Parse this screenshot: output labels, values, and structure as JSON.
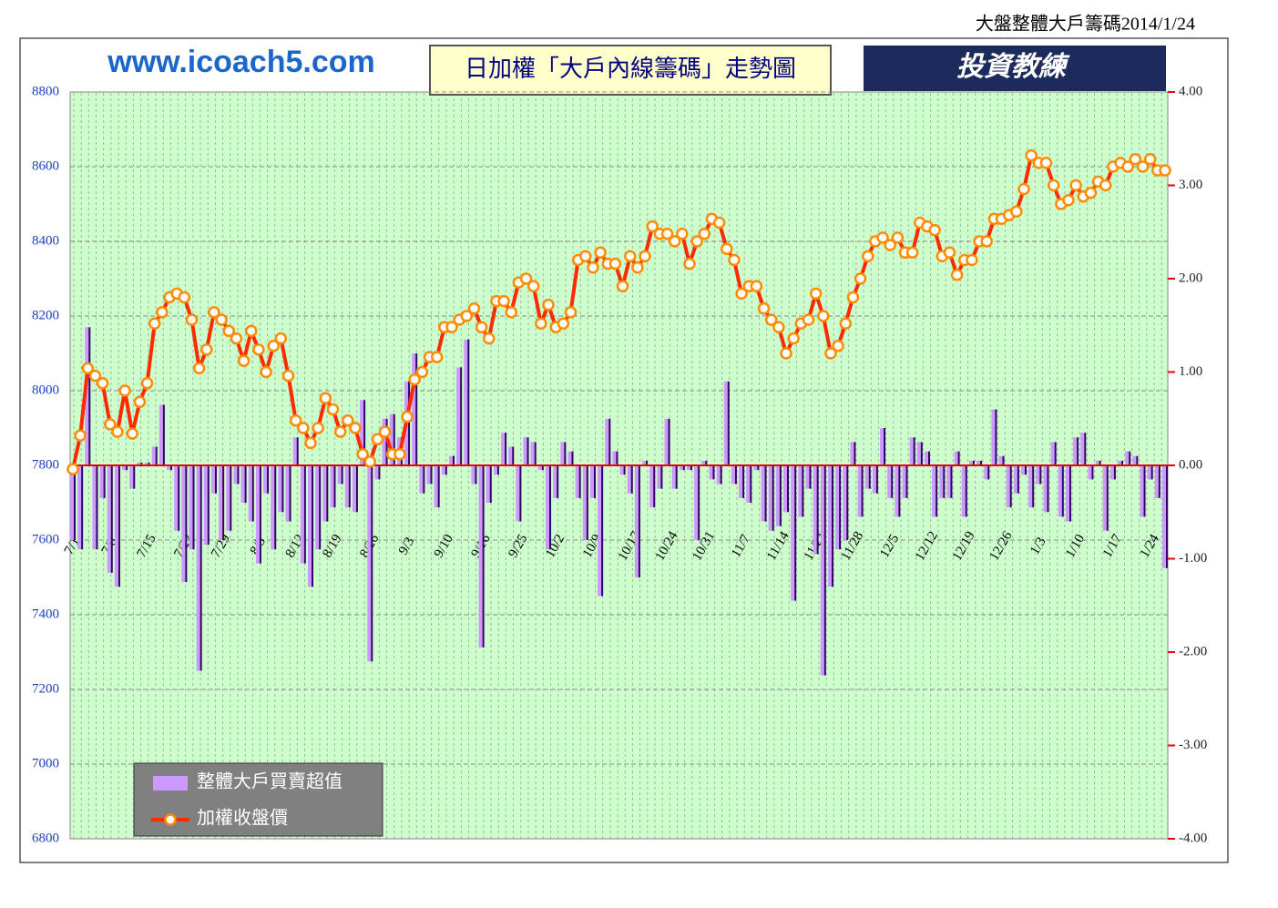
{
  "header": "大盤整體大戶籌碼2014/1/24",
  "site": "www.icoach5.com",
  "logo": "投資教練",
  "chart_data": {
    "type": "bar-line",
    "title": "日加權「大戶內線籌碼」走勢圖",
    "categories": [
      "7/1",
      null,
      null,
      null,
      null,
      "7/8",
      null,
      null,
      null,
      null,
      "7/15",
      null,
      null,
      null,
      null,
      "7/22",
      null,
      null,
      null,
      null,
      "7/29",
      null,
      null,
      null,
      null,
      "8/5",
      null,
      null,
      null,
      null,
      "8/12",
      null,
      null,
      null,
      null,
      "8/19",
      null,
      null,
      null,
      null,
      "8/26",
      null,
      null,
      null,
      null,
      "9/3",
      null,
      null,
      null,
      null,
      "9/10",
      null,
      null,
      null,
      null,
      "9/16",
      null,
      null,
      null,
      null,
      "9/25",
      null,
      null,
      null,
      null,
      "10/2",
      null,
      null,
      null,
      null,
      "10/9",
      null,
      null,
      null,
      null,
      "10/17",
      null,
      null,
      null,
      null,
      "10/24",
      null,
      null,
      null,
      null,
      "10/31",
      null,
      null,
      null,
      null,
      "11/7",
      null,
      null,
      null,
      null,
      "11/14",
      null,
      null,
      null,
      null,
      "11/21",
      null,
      null,
      null,
      null,
      "11/28",
      null,
      null,
      null,
      null,
      "12/5",
      null,
      null,
      null,
      null,
      "12/12",
      null,
      null,
      null,
      null,
      "12/19",
      null,
      null,
      null,
      null,
      "12/26",
      null,
      null,
      null,
      null,
      "1/3",
      null,
      null,
      null,
      null,
      "1/10",
      null,
      null,
      null,
      null,
      "1/17",
      null,
      null,
      null,
      null,
      "1/24",
      null,
      null
    ],
    "series": [
      {
        "name": "整體大戶買賣超值",
        "type": "bar",
        "axis": "y2",
        "color": "#cc99ff",
        "values": [
          -0.8,
          -0.9,
          1.48,
          -0.9,
          -0.35,
          -1.15,
          -1.3,
          -0.05,
          -0.25,
          0.03,
          0.03,
          0.2,
          0.65,
          -0.05,
          -0.7,
          -1.25,
          -0.9,
          -2.2,
          -0.85,
          -0.3,
          -0.8,
          -0.7,
          -0.2,
          -0.4,
          -0.6,
          -1.05,
          -0.3,
          -0.9,
          -0.5,
          -0.6,
          0.3,
          -1.05,
          -1.3,
          -0.9,
          -0.6,
          -0.45,
          -0.2,
          -0.45,
          -0.5,
          0.7,
          -2.1,
          -0.15,
          0.5,
          0.55,
          0.3,
          0.9,
          1.2,
          -0.3,
          -0.2,
          -0.45,
          -0.1,
          0.1,
          1.05,
          1.35,
          -0.2,
          -1.95,
          -0.4,
          -0.1,
          0.35,
          0.2,
          -0.6,
          0.3,
          0.25,
          -0.05,
          -0.9,
          -0.35,
          0.25,
          0.15,
          -0.35,
          -0.8,
          -0.35,
          -1.4,
          0.5,
          0.15,
          -0.1,
          -0.3,
          -1.2,
          0.05,
          -0.45,
          -0.25,
          0.5,
          -0.25,
          -0.05,
          -0.05,
          -0.8,
          0.05,
          -0.15,
          -0.2,
          0.9,
          -0.2,
          -0.35,
          -0.4,
          -0.05,
          -0.6,
          -0.7,
          -0.65,
          -0.5,
          -1.45,
          -0.55,
          -0.25,
          -0.95,
          -2.25,
          -1.3,
          -0.9,
          -0.8,
          0.25,
          -0.55,
          -0.25,
          -0.3,
          0.4,
          -0.35,
          -0.55,
          -0.35,
          0.3,
          0.25,
          0.15,
          -0.55,
          -0.35,
          -0.35,
          0.15,
          -0.55,
          0.05,
          0.05,
          -0.15,
          0.6,
          0.1,
          -0.45,
          -0.3,
          -0.1,
          -0.45,
          -0.2,
          -0.5,
          0.25,
          -0.55,
          -0.6,
          0.3,
          0.35,
          -0.15,
          0.05,
          -0.7,
          -0.15,
          0.05,
          0.15,
          0.1,
          -0.55,
          -0.15,
          -0.35,
          -1.1
        ]
      },
      {
        "name": "加權收盤價",
        "type": "line",
        "color": "#ff2a00",
        "values": [
          7790,
          7880,
          8060,
          8040,
          8020,
          7910,
          7890,
          8000,
          7885,
          7970,
          8020,
          8180,
          8210,
          8250,
          8260,
          8250,
          8190,
          8060,
          8110,
          8210,
          8190,
          8160,
          8140,
          8080,
          8160,
          8110,
          8050,
          8120,
          8140,
          8040,
          7920,
          7900,
          7860,
          7900,
          7980,
          7950,
          7890,
          7920,
          7900,
          7830,
          7810,
          7870,
          7890,
          7830,
          7830,
          7930,
          8030,
          8050,
          8090,
          8090,
          8170,
          8170,
          8190,
          8200,
          8220,
          8170,
          8140,
          8240,
          8240,
          8210,
          8290,
          8300,
          8280,
          8180,
          8230,
          8170,
          8180,
          8210,
          8350,
          8360,
          8330,
          8370,
          8340,
          8340,
          8280,
          8360,
          8330,
          8360,
          8440,
          8420,
          8420,
          8400,
          8420,
          8340,
          8400,
          8420,
          8460,
          8450,
          8380,
          8350,
          8260,
          8280,
          8280,
          8220,
          8190,
          8170,
          8100,
          8140,
          8180,
          8190,
          8260,
          8200,
          8100,
          8120,
          8180,
          8250,
          8300,
          8360,
          8400,
          8410,
          8390,
          8410,
          8370,
          8370,
          8450,
          8440,
          8430,
          8360,
          8370,
          8310,
          8350,
          8350,
          8400,
          8400,
          8460,
          8460,
          8470,
          8480,
          8540,
          8630,
          8610,
          8610,
          8550,
          8500,
          8510,
          8550,
          8520,
          8530,
          8560,
          8550,
          8600,
          8610,
          8600,
          8620,
          8600,
          8620,
          8590,
          8590
        ]
      }
    ],
    "ylim": [
      6800,
      8800
    ],
    "yticks": [
      6800,
      7000,
      7200,
      7400,
      7600,
      7800,
      8000,
      8200,
      8400,
      8600,
      8800
    ],
    "y2lim": [
      -4,
      4
    ],
    "y2ticks": [
      {
        "value": -4,
        "label": "-4.00"
      },
      {
        "value": -3,
        "label": "-3.00"
      },
      {
        "value": -2,
        "label": "-2.00"
      },
      {
        "value": -1,
        "label": "-1.00"
      },
      {
        "value": 0,
        "label": "0.00"
      },
      {
        "value": 1,
        "label": "1.00"
      },
      {
        "value": 2,
        "label": "2.00"
      },
      {
        "value": 3,
        "label": "3.00"
      },
      {
        "value": 4,
        "label": "4.00"
      }
    ],
    "grid": true
  }
}
